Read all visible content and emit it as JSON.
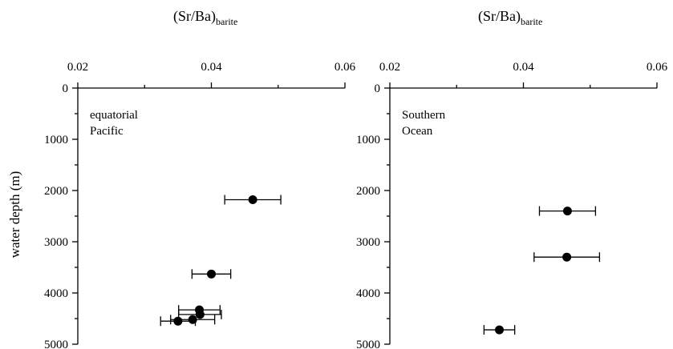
{
  "chart_data": [
    {
      "type": "scatter",
      "title": "(Sr/Ba)",
      "title_subscript": "barite",
      "annotation_lines": [
        "equatorial",
        "Pacific"
      ],
      "ylabel": "water depth (m)",
      "xlim": [
        0.02,
        0.06
      ],
      "ylim": [
        0,
        5000
      ],
      "y_inverted": true,
      "x_axis_position": "top",
      "x_ticks": [
        "0.02",
        "0.04",
        "0.06"
      ],
      "y_ticks": [
        "0",
        "1000",
        "2000",
        "3000",
        "4000",
        "5000"
      ],
      "points": [
        {
          "x": 0.0462,
          "y": 2180,
          "xerr": 0.0042
        },
        {
          "x": 0.04,
          "y": 3630,
          "xerr": 0.0029
        },
        {
          "x": 0.0382,
          "y": 4330,
          "xerr": 0.0031
        },
        {
          "x": 0.0383,
          "y": 4420,
          "xerr": 0.0032
        },
        {
          "x": 0.0372,
          "y": 4520,
          "xerr": 0.0033
        },
        {
          "x": 0.035,
          "y": 4550,
          "xerr": 0.0026
        }
      ]
    },
    {
      "type": "scatter",
      "title": "(Sr/Ba)",
      "title_subscript": "barite",
      "annotation_lines": [
        "Southern",
        "Ocean"
      ],
      "ylabel": "",
      "xlim": [
        0.02,
        0.06
      ],
      "ylim": [
        0,
        5000
      ],
      "y_inverted": true,
      "x_axis_position": "top",
      "x_ticks": [
        "0.02",
        "0.04",
        "0.06"
      ],
      "y_ticks": [
        "0",
        "1000",
        "2000",
        "3000",
        "4000",
        "5000"
      ],
      "points": [
        {
          "x": 0.0466,
          "y": 2400,
          "xerr": 0.0042
        },
        {
          "x": 0.0465,
          "y": 3300,
          "xerr": 0.0049
        },
        {
          "x": 0.0364,
          "y": 4720,
          "xerr": 0.0023
        }
      ]
    }
  ]
}
